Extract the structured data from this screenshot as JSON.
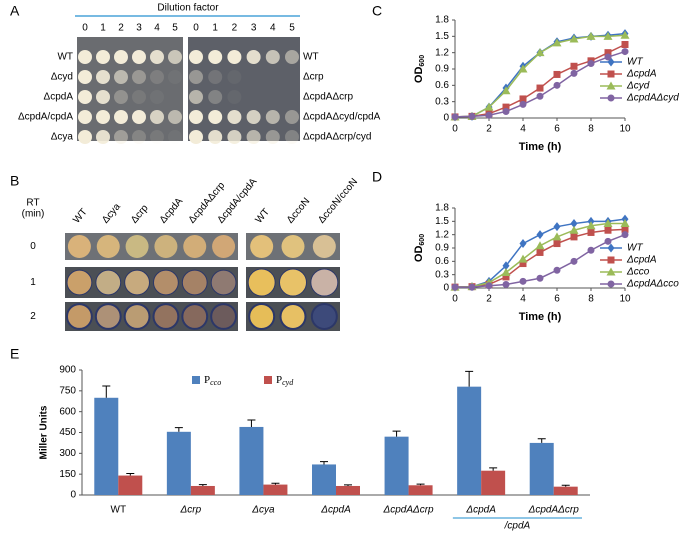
{
  "panel_labels": [
    "A",
    "B",
    "C",
    "D",
    "E"
  ],
  "panel_a": {
    "title": "Dilution factor",
    "dilutions": [
      0,
      1,
      2,
      3,
      4,
      5
    ],
    "left_strains": [
      "WT",
      "Δcyd",
      "ΔcpdA",
      "ΔcpdA/cpdA",
      "Δcya"
    ],
    "right_strains": [
      "WT",
      "Δcrp",
      "ΔcpdAΔcrp",
      "ΔcpdAΔcyd/cpdA",
      "ΔcpdAΔcrp/cyd"
    ]
  },
  "panel_b": {
    "rt_label": [
      "RT",
      "(min)"
    ],
    "times": [
      0,
      1,
      2
    ],
    "left_strains": [
      "WT",
      "Δcya",
      "Δcrp",
      "ΔcpdA",
      "ΔcpdAΔcrp",
      "ΔcpdA/cpdA"
    ],
    "right_strains": [
      "WT",
      "ΔccoN",
      "ΔccoN/ccoN"
    ]
  },
  "chart_data": [
    {
      "type": "line",
      "x_label": "Time (h)",
      "y_label": "OD",
      "y_label_sub": "600",
      "x": [
        0,
        1,
        2,
        3,
        4,
        5,
        6,
        7,
        8,
        9,
        10
      ],
      "xlim": [
        0,
        10
      ],
      "xticks": [
        0,
        2,
        4,
        6,
        8,
        10
      ],
      "ylim": [
        0,
        1.8
      ],
      "yticks": [
        0,
        0.3,
        0.6,
        0.9,
        1.2,
        1.5,
        1.8
      ],
      "series": [
        {
          "name": "WT",
          "color": "#3f74c2",
          "marker": "diamond",
          "values": [
            0.02,
            0.03,
            0.2,
            0.55,
            0.95,
            1.2,
            1.4,
            1.47,
            1.5,
            1.52,
            1.55
          ]
        },
        {
          "name": "ΔcpdA",
          "color": "#c0504d",
          "marker": "square",
          "values": [
            0.02,
            0.03,
            0.08,
            0.2,
            0.35,
            0.55,
            0.8,
            0.95,
            1.05,
            1.2,
            1.35
          ]
        },
        {
          "name": "Δcyd",
          "color": "#9bbb59",
          "marker": "triangle",
          "values": [
            0.02,
            0.03,
            0.2,
            0.5,
            0.9,
            1.2,
            1.38,
            1.45,
            1.5,
            1.5,
            1.52
          ]
        },
        {
          "name": "ΔcpdAΔcyd",
          "color": "#8064a2",
          "marker": "circle",
          "values": [
            0.02,
            0.03,
            0.05,
            0.12,
            0.25,
            0.4,
            0.6,
            0.82,
            1.0,
            1.12,
            1.22
          ]
        }
      ]
    },
    {
      "type": "line",
      "x_label": "Time (h)",
      "y_label": "OD",
      "y_label_sub": "600",
      "x": [
        0,
        1,
        2,
        3,
        4,
        5,
        6,
        7,
        8,
        9,
        10
      ],
      "xlim": [
        0,
        10
      ],
      "xticks": [
        0,
        2,
        4,
        6,
        8,
        10
      ],
      "ylim": [
        0,
        1.8
      ],
      "yticks": [
        0,
        0.3,
        0.6,
        0.9,
        1.2,
        1.5,
        1.8
      ],
      "series": [
        {
          "name": "WT",
          "color": "#3f74c2",
          "marker": "diamond",
          "values": [
            0.02,
            0.03,
            0.15,
            0.5,
            1.0,
            1.2,
            1.38,
            1.45,
            1.5,
            1.5,
            1.55
          ]
        },
        {
          "name": "ΔcpdA",
          "color": "#c0504d",
          "marker": "square",
          "values": [
            0.02,
            0.03,
            0.08,
            0.25,
            0.55,
            0.8,
            1.0,
            1.15,
            1.25,
            1.3,
            1.32
          ]
        },
        {
          "name": "Δcco",
          "color": "#9bbb59",
          "marker": "triangle",
          "values": [
            0.02,
            0.03,
            0.12,
            0.35,
            0.65,
            0.95,
            1.15,
            1.3,
            1.4,
            1.45,
            1.45
          ]
        },
        {
          "name": "ΔcpdAΔcco",
          "color": "#8064a2",
          "marker": "circle",
          "values": [
            0.02,
            0.02,
            0.05,
            0.08,
            0.15,
            0.22,
            0.4,
            0.6,
            0.85,
            1.05,
            1.2
          ]
        }
      ]
    },
    {
      "type": "bar",
      "y_label": "Miller Units",
      "categories": [
        "WT",
        "Δcrp",
        "Δcya",
        "ΔcpdA",
        "ΔcpdAΔcrp",
        "ΔcpdA",
        "ΔcpdAΔcrp"
      ],
      "category_sublabel": "/cpdA",
      "ylim": [
        0,
        900
      ],
      "yticks": [
        0,
        150,
        300,
        450,
        600,
        750,
        900
      ],
      "series": [
        {
          "name": "P",
          "name_sub": "cco",
          "color": "#4f81bd",
          "values": [
            700,
            455,
            490,
            220,
            420,
            780,
            375
          ],
          "errors": [
            85,
            30,
            50,
            20,
            40,
            110,
            30
          ]
        },
        {
          "name": "P",
          "name_sub": "cyd",
          "color": "#c0504d",
          "values": [
            140,
            65,
            75,
            65,
            70,
            175,
            60
          ],
          "errors": [
            15,
            10,
            10,
            8,
            8,
            20,
            10
          ]
        }
      ]
    }
  ]
}
